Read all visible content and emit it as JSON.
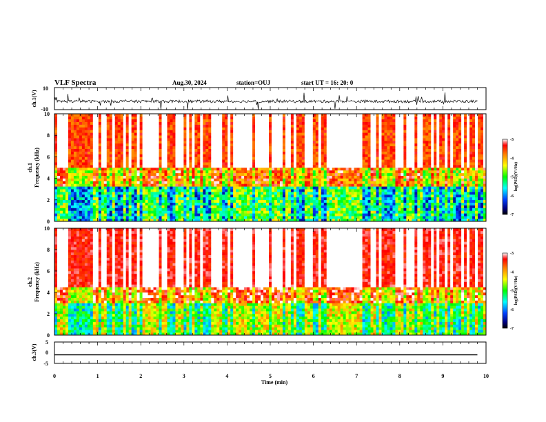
{
  "header": {
    "title": "VLF Spectra",
    "date": "Aug.30, 2024",
    "station": "station=OUJ",
    "start_ut": "start  UT  =  16: 20: 0"
  },
  "colors": {
    "low": "#000080",
    "mid": "#00ff00",
    "high": "#ff0000",
    "max": "#ffffff"
  },
  "chart_data": [
    {
      "id": "ch1-waveform",
      "type": "line",
      "ylabel": "ch.1(V)",
      "ylim": [
        -10,
        10
      ],
      "yticks": [
        "10",
        "-10"
      ],
      "xlim": [
        0,
        10
      ],
      "baseline": -2.5
    },
    {
      "id": "ch1-spectrogram",
      "type": "heatmap",
      "ylabel": "ch.1\nFrequency (kHz)",
      "ylim": [
        0,
        10
      ],
      "yticks": [
        "0",
        "2",
        "4",
        "6",
        "8",
        "10"
      ],
      "xlim": [
        0,
        10
      ],
      "colorbar": {
        "label": "log(PSD)(V²/Hz)",
        "range": [
          -7,
          -3
        ],
        "ticks": [
          "-3",
          "-4",
          "-5",
          "-6",
          "-7"
        ]
      }
    },
    {
      "id": "ch2-spectrogram",
      "type": "heatmap",
      "ylabel": "ch.2\nFrequency (kHz)",
      "ylim": [
        0,
        10
      ],
      "yticks": [
        "0",
        "2",
        "4",
        "6",
        "8",
        "10"
      ],
      "xlim": [
        0,
        10
      ],
      "colorbar": {
        "label": "log(PSD)(V²/Hz)",
        "range": [
          -7,
          -3
        ],
        "ticks": [
          "-3",
          "-4",
          "-5",
          "-6",
          "-7"
        ]
      }
    },
    {
      "id": "ch3-waveform",
      "type": "line",
      "ylabel": "ch.3(V)",
      "ylim": [
        -5,
        5
      ],
      "yticks": [
        "5",
        "0",
        "-5"
      ],
      "xlim": [
        0,
        10
      ],
      "baseline": -1.0
    }
  ],
  "xaxis": {
    "label": "Time  (min)",
    "ticks": [
      "0",
      "1",
      "2",
      "3",
      "4",
      "5",
      "6",
      "7",
      "8",
      "9",
      "10"
    ]
  },
  "ylabels": {
    "ch1_wave": "ch.1(V)",
    "ch1_spec_a": "ch.1",
    "ch1_spec_b": "Frequency (kHz)",
    "ch2_spec_a": "ch.2",
    "ch2_spec_b": "Frequency (kHz)",
    "ch3_wave": "ch.3(V)",
    "cb_label": "log(PSD)(V²/Hz)"
  }
}
